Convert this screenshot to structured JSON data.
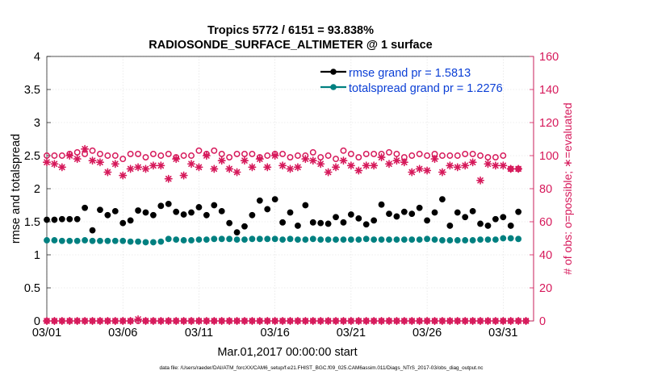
{
  "chart_data": {
    "type": "line",
    "title_line1": "Tropics 5772 / 6151 = 93.838%",
    "title_line2": "RADIOSONDE_SURFACE_ALTIMETER @ 1 surface",
    "xlabel": "Mar.01,2017 00:00:00 start",
    "ylabel_left": "rmse and totalspread",
    "ylabel_right": "# of obs: o=possible; ∗=evaluated",
    "footnote": "data file: /Users/raeder/DAI/ATM_forcXX/CAM6_setup/f.e21.FHIST_BGC.f09_025.CAM6assim.011/Diags_NTrS_2017-03/obs_diag_output.nc",
    "xlim": [
      0,
      32
    ],
    "ylim_left": [
      0,
      4
    ],
    "ylim_right": [
      0,
      160
    ],
    "x_ticks": [
      {
        "value": 0,
        "label": "03/01"
      },
      {
        "value": 5,
        "label": "03/06"
      },
      {
        "value": 10,
        "label": "03/11"
      },
      {
        "value": 15,
        "label": "03/16"
      },
      {
        "value": 20,
        "label": "03/21"
      },
      {
        "value": 25,
        "label": "03/26"
      },
      {
        "value": 30,
        "label": "03/31"
      }
    ],
    "y_ticks_left": [
      {
        "value": 0,
        "label": "0"
      },
      {
        "value": 0.5,
        "label": "0.5"
      },
      {
        "value": 1,
        "label": "1"
      },
      {
        "value": 1.5,
        "label": "1.5"
      },
      {
        "value": 2,
        "label": "2"
      },
      {
        "value": 2.5,
        "label": "2.5"
      },
      {
        "value": 3,
        "label": "3"
      },
      {
        "value": 3.5,
        "label": "3.5"
      },
      {
        "value": 4,
        "label": "4"
      }
    ],
    "y_ticks_right": [
      {
        "value": 0,
        "label": "0"
      },
      {
        "value": 20,
        "label": "20"
      },
      {
        "value": 40,
        "label": "40"
      },
      {
        "value": 60,
        "label": "60"
      },
      {
        "value": 80,
        "label": "80"
      },
      {
        "value": 100,
        "label": "100"
      },
      {
        "value": 120,
        "label": "120"
      },
      {
        "value": 140,
        "label": "140"
      },
      {
        "value": 160,
        "label": "160"
      }
    ],
    "grid": true,
    "legend_position": "top-right",
    "colors": {
      "rmse": "#000000",
      "spread": "#008080",
      "obs": "#d6185a",
      "legend_text": "#0b3fd6",
      "grid": "#dddddd",
      "axis": "#262626"
    },
    "series": [
      {
        "name": "rmse grand pr = 1.5813",
        "key": "rmse",
        "axis": "left",
        "marker": "dot",
        "x": [
          0,
          0.5,
          1,
          1.5,
          2,
          2.5,
          3,
          3.5,
          4,
          4.5,
          5,
          5.5,
          6,
          6.5,
          7,
          7.5,
          8,
          8.5,
          9,
          9.5,
          10,
          10.5,
          11,
          11.5,
          12,
          12.5,
          13,
          13.5,
          14,
          14.5,
          15,
          15.5,
          16,
          16.5,
          17,
          17.5,
          18,
          18.5,
          19,
          19.5,
          20,
          20.5,
          21,
          21.5,
          22,
          22.5,
          23,
          23.5,
          24,
          24.5,
          25,
          25.5,
          26,
          26.5,
          27,
          27.5,
          28,
          28.5,
          29,
          29.5,
          30,
          30.5,
          31
        ],
        "values": [
          1.53,
          1.53,
          1.54,
          1.54,
          1.54,
          1.71,
          1.37,
          1.68,
          1.6,
          1.66,
          1.48,
          1.52,
          1.67,
          1.64,
          1.6,
          1.74,
          1.77,
          1.65,
          1.61,
          1.64,
          1.72,
          1.6,
          1.75,
          1.66,
          1.48,
          1.34,
          1.43,
          1.6,
          1.82,
          1.69,
          1.84,
          1.49,
          1.64,
          1.44,
          1.75,
          1.49,
          1.48,
          1.47,
          1.57,
          1.49,
          1.61,
          1.55,
          1.46,
          1.52,
          1.76,
          1.62,
          1.58,
          1.65,
          1.62,
          1.71,
          1.52,
          1.64,
          1.84,
          1.44,
          1.64,
          1.57,
          1.66,
          1.47,
          1.44,
          1.54,
          1.57,
          1.44,
          1.65
        ]
      },
      {
        "name": "totalspread grand pr = 1.2276",
        "key": "spread",
        "axis": "left",
        "marker": "dot",
        "x": [
          0,
          0.5,
          1,
          1.5,
          2,
          2.5,
          3,
          3.5,
          4,
          4.5,
          5,
          5.5,
          6,
          6.5,
          7,
          7.5,
          8,
          8.5,
          9,
          9.5,
          10,
          10.5,
          11,
          11.5,
          12,
          12.5,
          13,
          13.5,
          14,
          14.5,
          15,
          15.5,
          16,
          16.5,
          17,
          17.5,
          18,
          18.5,
          19,
          19.5,
          20,
          20.5,
          21,
          21.5,
          22,
          22.5,
          23,
          23.5,
          24,
          24.5,
          25,
          25.5,
          26,
          26.5,
          27,
          27.5,
          28,
          28.5,
          29,
          29.5,
          30,
          30.5,
          31
        ],
        "values": [
          1.22,
          1.22,
          1.21,
          1.21,
          1.21,
          1.22,
          1.21,
          1.21,
          1.21,
          1.21,
          1.21,
          1.2,
          1.2,
          1.19,
          1.19,
          1.2,
          1.24,
          1.23,
          1.22,
          1.22,
          1.23,
          1.23,
          1.24,
          1.24,
          1.24,
          1.23,
          1.23,
          1.24,
          1.24,
          1.24,
          1.24,
          1.23,
          1.24,
          1.23,
          1.23,
          1.24,
          1.23,
          1.23,
          1.23,
          1.23,
          1.23,
          1.23,
          1.24,
          1.23,
          1.23,
          1.23,
          1.23,
          1.23,
          1.23,
          1.23,
          1.24,
          1.23,
          1.22,
          1.22,
          1.22,
          1.22,
          1.22,
          1.23,
          1.23,
          1.23,
          1.25,
          1.25,
          1.24
        ]
      },
      {
        "name": "obs possible",
        "key": "possible",
        "axis": "right",
        "marker": "circle",
        "x": [
          0,
          0.5,
          1,
          1.5,
          2,
          2.5,
          3,
          3.5,
          4,
          4.5,
          5,
          5.5,
          6,
          6.5,
          7,
          7.5,
          8,
          8.5,
          9,
          9.5,
          10,
          10.5,
          11,
          11.5,
          12,
          12.5,
          13,
          13.5,
          14,
          14.5,
          15,
          15.5,
          16,
          16.5,
          17,
          17.5,
          18,
          18.5,
          19,
          19.5,
          20,
          20.5,
          21,
          21.5,
          22,
          22.5,
          23,
          23.5,
          24,
          24.5,
          25,
          25.5,
          26,
          26.5,
          27,
          27.5,
          28,
          28.5,
          29,
          29.5,
          30,
          30.5,
          31
        ],
        "values": [
          100,
          100,
          100,
          101,
          102,
          101,
          103,
          101,
          100,
          100,
          98,
          101,
          101,
          99,
          101,
          100,
          101,
          99,
          100,
          100,
          103,
          101,
          103,
          101,
          99,
          101,
          101,
          101,
          99,
          100,
          101,
          101,
          99,
          100,
          100,
          102,
          99,
          100,
          98,
          103,
          101,
          99,
          101,
          101,
          101,
          102,
          101,
          99,
          100,
          101,
          100,
          101,
          100,
          100,
          100,
          101,
          101,
          100,
          99,
          99,
          100,
          92,
          92
        ]
      },
      {
        "name": "obs evaluated",
        "key": "evaluated",
        "axis": "right",
        "marker": "star",
        "x": [
          0,
          0.5,
          1,
          1.5,
          2,
          2.5,
          3,
          3.5,
          4,
          4.5,
          5,
          5.5,
          6,
          6.5,
          7,
          7.5,
          8,
          8.5,
          9,
          9.5,
          10,
          10.5,
          11,
          11.5,
          12,
          12.5,
          13,
          13.5,
          14,
          14.5,
          15,
          15.5,
          16,
          16.5,
          17,
          17.5,
          18,
          18.5,
          19,
          19.5,
          20,
          20.5,
          21,
          21.5,
          22,
          22.5,
          23,
          23.5,
          24,
          24.5,
          25,
          25.5,
          26,
          26.5,
          27,
          27.5,
          28,
          28.5,
          29,
          29.5,
          30,
          30.5,
          31
        ],
        "values": [
          96,
          95,
          93,
          100,
          98,
          104,
          97,
          96,
          90,
          95,
          88,
          92,
          93,
          92,
          94,
          94,
          86,
          98,
          88,
          95,
          93,
          100,
          92,
          97,
          92,
          90,
          97,
          93,
          98,
          93,
          100,
          94,
          92,
          93,
          98,
          97,
          95,
          90,
          93,
          97,
          94,
          91,
          94,
          94,
          99,
          95,
          97,
          96,
          90,
          92,
          91,
          98,
          90,
          94,
          93,
          94,
          96,
          85,
          95,
          94,
          94,
          92,
          92
        ]
      },
      {
        "name": "obs possible baseline",
        "key": "possible_zero",
        "axis": "right",
        "marker": "circle",
        "x": [
          0,
          0.5,
          1,
          1.5,
          2,
          2.5,
          3,
          3.5,
          4,
          4.5,
          5,
          5.5,
          6,
          6.5,
          7,
          7.5,
          8,
          8.5,
          9,
          9.5,
          10,
          10.5,
          11,
          11.5,
          12,
          12.5,
          13,
          13.5,
          14,
          14.5,
          15,
          15.5,
          16,
          16.5,
          17,
          17.5,
          18,
          18.5,
          19,
          19.5,
          20,
          20.5,
          21,
          21.5,
          22,
          22.5,
          23,
          23.5,
          24,
          24.5,
          25,
          25.5,
          26,
          26.5,
          27,
          27.5,
          28,
          28.5,
          29,
          29.5,
          30,
          30.5,
          31,
          31.5
        ],
        "values": [
          0,
          0,
          0,
          0,
          0,
          0,
          0,
          0,
          0,
          0,
          0,
          0,
          0,
          0,
          0,
          0,
          0,
          0,
          0,
          0,
          0,
          0,
          0,
          0,
          0,
          0,
          0,
          0,
          0,
          0,
          0,
          0,
          0,
          0,
          0,
          0,
          0,
          0,
          0,
          0,
          0,
          0,
          0,
          0,
          0,
          0,
          0,
          0,
          0,
          0,
          0,
          0,
          0,
          0,
          0,
          0,
          0,
          0,
          0,
          0,
          0,
          0,
          0,
          0
        ]
      },
      {
        "name": "obs evaluated baseline",
        "key": "evaluated_zero",
        "axis": "right",
        "marker": "star",
        "x": [
          0,
          0.5,
          1,
          1.5,
          2,
          2.5,
          3,
          3.5,
          4,
          4.5,
          5,
          5.5,
          6,
          6.5,
          7,
          7.5,
          8,
          8.5,
          9,
          9.5,
          10,
          10.5,
          11,
          11.5,
          12,
          12.5,
          13,
          13.5,
          14,
          14.5,
          15,
          15.5,
          16,
          16.5,
          17,
          17.5,
          18,
          18.5,
          19,
          19.5,
          20,
          20.5,
          21,
          21.5,
          22,
          22.5,
          23,
          23.5,
          24,
          24.5,
          25,
          25.5,
          26,
          26.5,
          27,
          27.5,
          28,
          28.5,
          29,
          29.5,
          30,
          30.5,
          31,
          31.5
        ],
        "values": [
          0,
          0,
          0,
          0,
          0,
          0,
          0,
          0,
          0,
          0,
          0,
          0,
          1,
          0,
          0,
          0,
          0,
          0,
          0,
          0,
          0,
          0,
          0,
          0,
          0,
          0,
          0,
          0,
          0,
          0,
          0,
          0,
          0,
          0,
          0,
          0,
          0,
          0,
          0,
          0,
          0,
          0,
          0,
          0,
          0,
          0,
          0,
          0,
          0,
          0,
          0,
          0,
          0,
          0,
          0,
          0,
          0,
          0,
          0,
          0,
          0,
          0,
          0,
          0
        ]
      }
    ]
  }
}
